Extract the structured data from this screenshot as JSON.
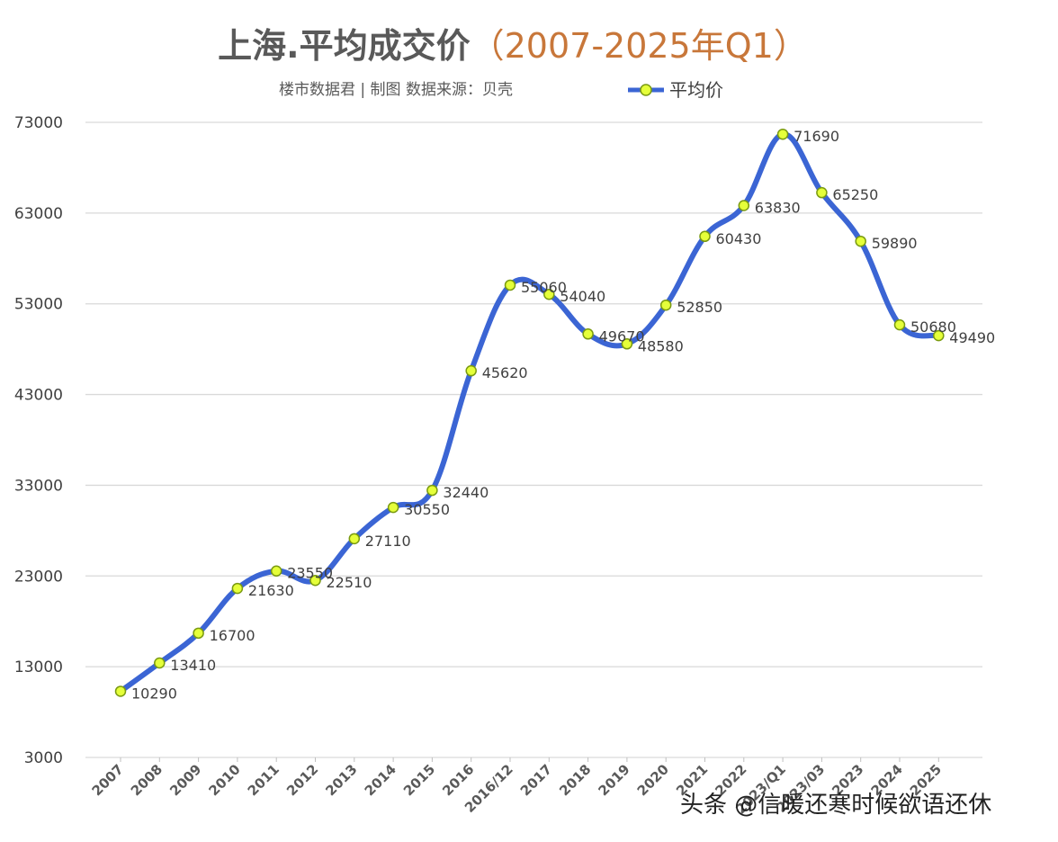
{
  "title_main": "上海.平均成交价",
  "title_open": "（",
  "title_years": "2007-2025年Q1",
  "title_close": "）",
  "subtitle": "楼市数据君 | 制图   数据来源：贝壳",
  "watermark": "头条 @信暖还寒时候欲语还休",
  "colors": {
    "line": "#3b65d4",
    "marker_fill": "#e5ff3a",
    "marker_stroke": "#7a9a10",
    "grid": "#d9d9d9",
    "title_accent": "#c8773a"
  },
  "chart_data": {
    "type": "line",
    "title": "上海.平均成交价（2007-2025年Q1）",
    "categories": [
      "2007",
      "2008",
      "2009",
      "2010",
      "2011",
      "2012",
      "2013",
      "2014",
      "2015",
      "2016",
      "2016/12",
      "2017",
      "2018",
      "2019",
      "2020",
      "2021",
      "2022",
      "2023/Q1",
      "2023/03",
      "2023",
      "2024",
      "2025"
    ],
    "series": [
      {
        "name": "平均价",
        "values": [
          10290,
          13410,
          16700,
          21630,
          23550,
          22510,
          27110,
          30550,
          32440,
          45620,
          55060,
          54040,
          49670,
          48580,
          52850,
          60430,
          63830,
          71690,
          65250,
          59890,
          50680,
          49490
        ]
      }
    ],
    "ylim": [
      3000,
      73000
    ],
    "yticks": [
      3000,
      13000,
      23000,
      33000,
      43000,
      53000,
      63000,
      73000
    ],
    "grid": true,
    "legend": "top-right"
  }
}
